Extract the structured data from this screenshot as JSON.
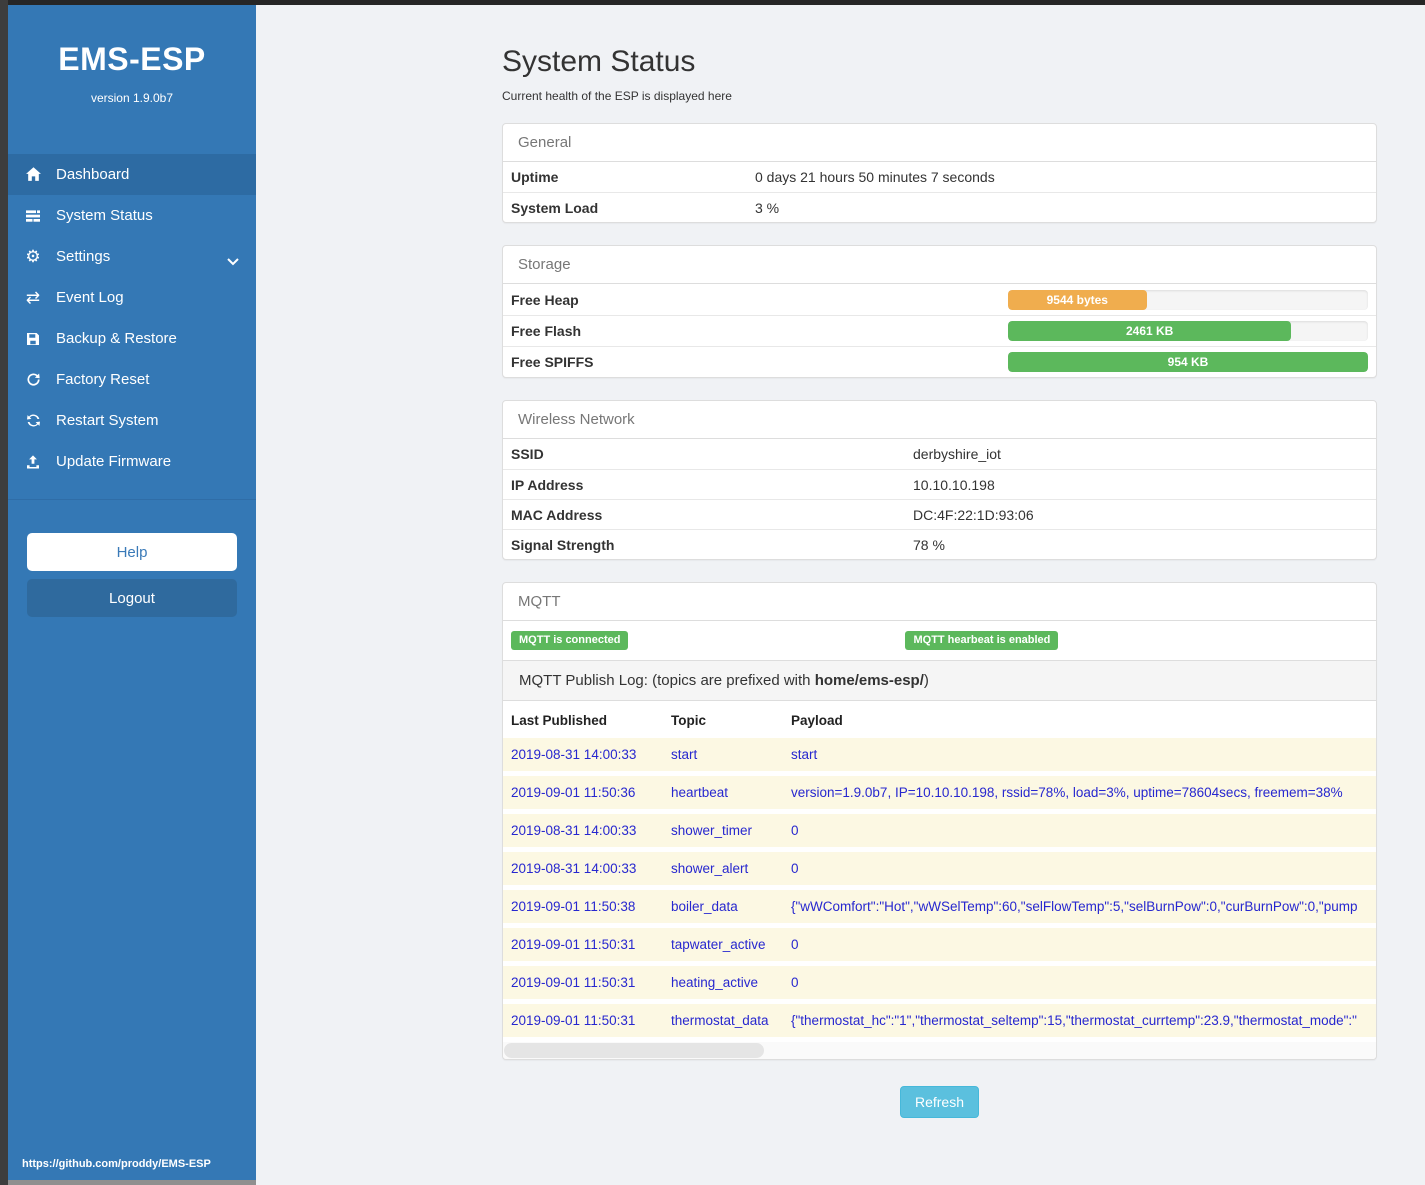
{
  "sidebar": {
    "title": "EMS-ESP",
    "version": "version 1.9.0b7",
    "items": [
      {
        "label": "Dashboard",
        "icon": "home-icon",
        "active": true
      },
      {
        "label": "System Status",
        "icon": "tasks-icon",
        "active": false
      },
      {
        "label": "Settings",
        "icon": "gear-icon",
        "active": false,
        "has_chevron": true
      },
      {
        "label": "Event Log",
        "icon": "exchange-icon",
        "active": false
      },
      {
        "label": "Backup & Restore",
        "icon": "save-icon",
        "active": false
      },
      {
        "label": "Factory Reset",
        "icon": "redo-icon",
        "active": false
      },
      {
        "label": "Restart System",
        "icon": "sync-icon",
        "active": false
      },
      {
        "label": "Update Firmware",
        "icon": "upload-icon",
        "active": false
      }
    ],
    "help_label": "Help",
    "logout_label": "Logout",
    "footer_link": "https://github.com/proddy/EMS-ESP"
  },
  "page": {
    "title": "System Status",
    "subtitle": "Current health of the ESP is displayed here"
  },
  "panels": {
    "general": {
      "title": "General",
      "rows": [
        {
          "label": "Uptime",
          "value": "0 days 21 hours 50 minutes 7 seconds"
        },
        {
          "label": "System Load",
          "value": "3 %"
        }
      ]
    },
    "storage": {
      "title": "Storage",
      "rows": [
        {
          "label": "Free Heap",
          "bar_label": "9544 bytes",
          "percent": 38.5,
          "color": "#f0ad4e"
        },
        {
          "label": "Free Flash",
          "bar_label": "2461 KB",
          "percent": 78.7,
          "color": "#5cb85c"
        },
        {
          "label": "Free SPIFFS",
          "bar_label": "954 KB",
          "percent": 100,
          "color": "#5cb85c"
        }
      ]
    },
    "wireless": {
      "title": "Wireless Network",
      "rows": [
        {
          "label": "SSID",
          "value": "derbyshire_iot"
        },
        {
          "label": "IP Address",
          "value": "10.10.10.198"
        },
        {
          "label": "MAC Address",
          "value": "DC:4F:22:1D:93:06"
        },
        {
          "label": "Signal Strength",
          "value": "78 %"
        }
      ]
    },
    "mqtt": {
      "title": "MQTT",
      "badges": [
        {
          "label": "MQTT is connected"
        },
        {
          "label": "MQTT hearbeat is enabled"
        }
      ],
      "log_label_prefix": "MQTT Publish Log: (topics are prefixed with ",
      "log_label_bold": "home/ems-esp/",
      "log_label_suffix": ")",
      "table": {
        "headers": [
          "Last Published",
          "Topic",
          "Payload"
        ],
        "rows": [
          {
            "time": "2019-08-31 14:00:33",
            "topic": "start",
            "payload": "start"
          },
          {
            "time": "2019-09-01 11:50:36",
            "topic": "heartbeat",
            "payload": "version=1.9.0b7, IP=10.10.10.198, rssid=78%, load=3%, uptime=78604secs, freemem=38%"
          },
          {
            "time": "2019-08-31 14:00:33",
            "topic": "shower_timer",
            "payload": "0"
          },
          {
            "time": "2019-08-31 14:00:33",
            "topic": "shower_alert",
            "payload": "0"
          },
          {
            "time": "2019-09-01 11:50:38",
            "topic": "boiler_data",
            "payload": "{\"wWComfort\":\"Hot\",\"wWSelTemp\":60,\"selFlowTemp\":5,\"selBurnPow\":0,\"curBurnPow\":0,\"pump"
          },
          {
            "time": "2019-09-01 11:50:31",
            "topic": "tapwater_active",
            "payload": "0"
          },
          {
            "time": "2019-09-01 11:50:31",
            "topic": "heating_active",
            "payload": "0"
          },
          {
            "time": "2019-09-01 11:50:31",
            "topic": "thermostat_data",
            "payload": "{\"thermostat_hc\":\"1\",\"thermostat_seltemp\":15,\"thermostat_currtemp\":23.9,\"thermostat_mode\":\""
          }
        ]
      }
    }
  },
  "refresh_label": "Refresh",
  "colors": {
    "sidebar_blue": "#3478b5",
    "active_item_blue": "#2d6ba3",
    "logout_blue": "#2f6a9e",
    "badge_green": "#5cb85c",
    "bar_orange": "#f0ad4e",
    "bar_green": "#5cb85c",
    "refresh_blue": "#5bc0de",
    "log_row_yellow": "#fcf8e3",
    "log_text_blue": "#2727cf"
  }
}
